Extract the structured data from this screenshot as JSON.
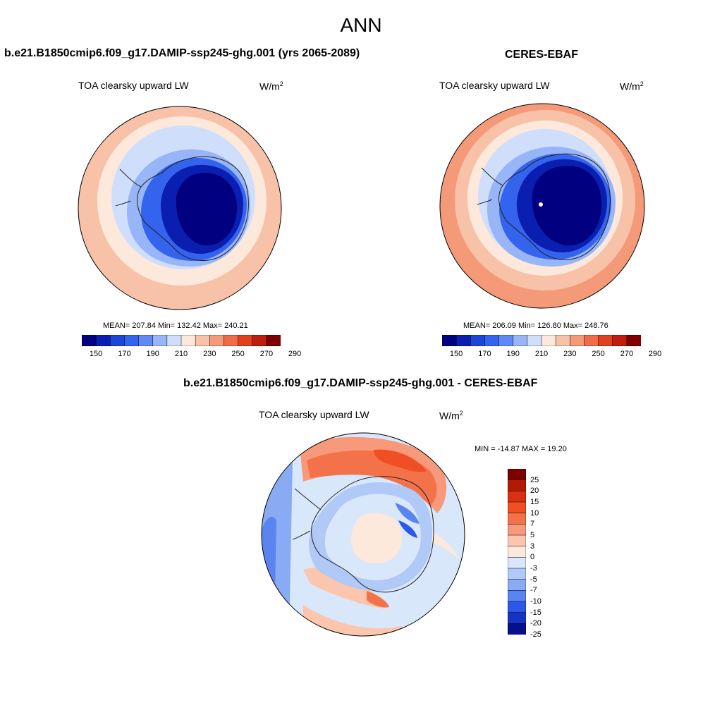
{
  "page_title": "ANN",
  "panels": {
    "model": {
      "title": "b.e21.B1850cmip6.f09_g17.DAMIP-ssp245-ghg.001 (yrs 2065-2089)",
      "variable": "TOA clearsky upward LW",
      "units_base": "W/m",
      "units_exp": "2",
      "stats": "MEAN= 207.84  Min= 132.42  Max= 240.21",
      "colorbar_ticks": [
        "150",
        "170",
        "190",
        "210",
        "230",
        "250",
        "270",
        "290"
      ]
    },
    "obs": {
      "title": "CERES-EBAF",
      "variable": "TOA clearsky upward LW",
      "units_base": "W/m",
      "units_exp": "2",
      "stats": "MEAN= 206.09  Min= 126.80  Max= 248.76",
      "colorbar_ticks": [
        "150",
        "170",
        "190",
        "210",
        "230",
        "250",
        "270",
        "290"
      ]
    },
    "diff": {
      "title": "b.e21.B1850cmip6.f09_g17.DAMIP-ssp245-ghg.001 - CERES-EBAF",
      "variable": "TOA clearsky upward LW",
      "units_base": "W/m",
      "units_exp": "2",
      "stats": "MIN = -14.87 MAX =  19.20",
      "colorbar_ticks": [
        "25",
        "20",
        "15",
        "10",
        "7",
        "5",
        "3",
        "0",
        "-3",
        "-5",
        "-7",
        "-10",
        "-15",
        "-20",
        "-25"
      ]
    }
  },
  "colors": {
    "abs_scale": [
      "#000080",
      "#0a1fb0",
      "#1b46d6",
      "#3463ee",
      "#5f8af5",
      "#98b5f7",
      "#cfdffb",
      "#fde9dc",
      "#f8c2a8",
      "#f59a78",
      "#ef6c47",
      "#e0401f",
      "#bf1e0c",
      "#7f0000"
    ],
    "diff_scale": [
      "#7f0000",
      "#b11a06",
      "#d83010",
      "#f04e25",
      "#f47249",
      "#f7997a",
      "#fbc6ad",
      "#fde8dc",
      "#d9e7fb",
      "#b0c9f6",
      "#88abf3",
      "#5a85f0",
      "#2e56e8",
      "#1533c4",
      "#060f8c"
    ]
  }
}
